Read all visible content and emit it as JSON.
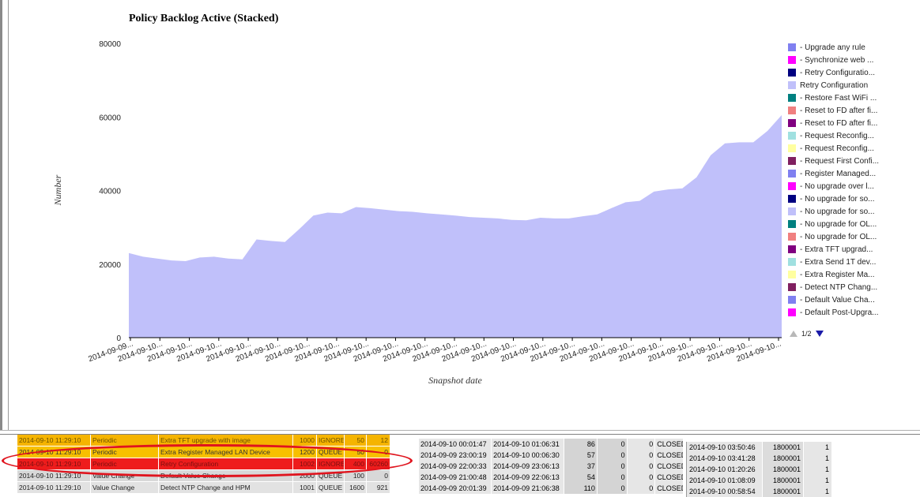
{
  "chart_data": {
    "type": "area",
    "title": "Policy Backlog Active (Stacked)",
    "ylabel": "Number",
    "xlabel": "Snapshot date",
    "ylim": [
      0,
      80000
    ],
    "yticks": [
      "0",
      "20000",
      "40000",
      "60000",
      "80000"
    ],
    "xtick_labels": [
      "2014-09-09...",
      "2014-09-10...",
      "2014-09-10...",
      "2014-09-10...",
      "2014-09-10...",
      "2014-09-10...",
      "2014-09-10...",
      "2014-09-10...",
      "2014-09-10...",
      "2014-09-10...",
      "2014-09-10...",
      "2014-09-10...",
      "2014-09-10...",
      "2014-09-10...",
      "2014-09-10...",
      "2014-09-10...",
      "2014-09-10...",
      "2014-09-10...",
      "2014-09-10...",
      "2014-09-10...",
      "2014-09-10...",
      "2014-09-10...",
      "2014-09-10..."
    ],
    "series": [
      {
        "name": "Retry Configuration",
        "color": "#c0c0fa",
        "values": [
          23000,
          22000,
          21500,
          21000,
          20800,
          21800,
          22000,
          21500,
          21300,
          26700,
          26300,
          26000,
          29500,
          33200,
          34000,
          33800,
          35500,
          35200,
          34800,
          34400,
          34200,
          33800,
          33500,
          33200,
          32800,
          32600,
          32400,
          32000,
          31900,
          32600,
          32400,
          32400,
          33000,
          33500,
          35200,
          36800,
          37200,
          39700,
          40300,
          40600,
          43600,
          49600,
          52800,
          53100,
          53100,
          56200,
          60500
        ]
      }
    ],
    "legend": [
      {
        "label": "- Upgrade any rule",
        "color": "#8080f0"
      },
      {
        "label": "- Synchronize web ...",
        "color": "#ff00ff"
      },
      {
        "label": "- Retry Configuratio...",
        "color": "#000080"
      },
      {
        "label": "Retry Configuration",
        "color": "#c0c0fa"
      },
      {
        "label": "- Restore Fast WiFi ...",
        "color": "#008080"
      },
      {
        "label": "- Reset to FD after fi...",
        "color": "#f08080"
      },
      {
        "label": "- Reset to FD after fi...",
        "color": "#800080"
      },
      {
        "label": "- Request Reconfig...",
        "color": "#a0e0e0"
      },
      {
        "label": "- Request Reconfig...",
        "color": "#ffffa0"
      },
      {
        "label": "- Request First Confi...",
        "color": "#802060"
      },
      {
        "label": "- Register Managed...",
        "color": "#8080f0"
      },
      {
        "label": "- No upgrade over l...",
        "color": "#ff00ff"
      },
      {
        "label": "- No upgrade for so...",
        "color": "#000080"
      },
      {
        "label": "- No upgrade for so...",
        "color": "#c0c0fa"
      },
      {
        "label": "- No upgrade for OL...",
        "color": "#008080"
      },
      {
        "label": "- No upgrade for OL...",
        "color": "#f08080"
      },
      {
        "label": "- Extra TFT upgrad...",
        "color": "#800080"
      },
      {
        "label": "- Extra Send 1T dev...",
        "color": "#a0e0e0"
      },
      {
        "label": "- Extra Register Ma...",
        "color": "#ffffa0"
      },
      {
        "label": "- Detect NTP Chang...",
        "color": "#802060"
      },
      {
        "label": "- Default Value Cha...",
        "color": "#8080f0"
      },
      {
        "label": "- Default Post-Upgra...",
        "color": "#ff00ff"
      }
    ],
    "legend_placement": "right",
    "legend_page": "1/2",
    "grid": false
  },
  "left_table": {
    "rows": [
      {
        "style": "cut",
        "ts": "2014-09-10 11:29:10",
        "type": "Periodic",
        "name": "Extra TFT upgrade with image",
        "n1": "1000",
        "status": "IGNORE",
        "n2": "50",
        "n3": "12"
      },
      {
        "style": "yellow",
        "ts": "2014-09-10 11:29:10",
        "type": "Periodic",
        "name": "Extra Register Managed LAN Device",
        "n1": "1200",
        "status": "QUEUE",
        "n2": "50",
        "n3": "0"
      },
      {
        "style": "red",
        "ts": "2014-09-10 11:29:10",
        "type": "Periodic",
        "name": "Retry Configuration",
        "n1": "1002",
        "status": "IGNORE",
        "n2": "400",
        "n3": "60260"
      },
      {
        "style": "grey",
        "ts": "2014-09-10 11:29:10",
        "type": "Value Change",
        "name": "Default Value Change",
        "n1": "2000",
        "status": "QUEUE",
        "n2": "100",
        "n3": "0"
      },
      {
        "style": "grey2",
        "ts": "2014-09-10 11:29:10",
        "type": "Value Change",
        "name": "Detect NTP Change and HPM",
        "n1": "1001",
        "status": "QUEUE",
        "n2": "1600",
        "n3": "921"
      }
    ]
  },
  "mid_table": {
    "rows": [
      {
        "a": "2014-09-10 00:01:47",
        "b": "2014-09-10 01:06:31",
        "c": "86",
        "d": "0",
        "e": "0",
        "f": "CLOSED"
      },
      {
        "a": "2014-09-09 23:00:19",
        "b": "2014-09-10 00:06:30",
        "c": "57",
        "d": "0",
        "e": "0",
        "f": "CLOSED"
      },
      {
        "a": "2014-09-09 22:00:33",
        "b": "2014-09-09 23:06:13",
        "c": "37",
        "d": "0",
        "e": "0",
        "f": "CLOSED"
      },
      {
        "a": "2014-09-09 21:00:48",
        "b": "2014-09-09 22:06:13",
        "c": "54",
        "d": "0",
        "e": "0",
        "f": "CLOSED"
      },
      {
        "a": "2014-09-09 20:01:39",
        "b": "2014-09-09 21:06:38",
        "c": "110",
        "d": "0",
        "e": "0",
        "f": "CLOSED"
      }
    ]
  },
  "right_table": {
    "rows": [
      {
        "a": "2014-09-10 03:50:46",
        "b": "1800001",
        "c": "1"
      },
      {
        "a": "2014-09-10 03:41:28",
        "b": "1800001",
        "c": "1"
      },
      {
        "a": "2014-09-10 01:20:26",
        "b": "1800001",
        "c": "1"
      },
      {
        "a": "2014-09-10 01:08:09",
        "b": "1800001",
        "c": "1"
      },
      {
        "a": "2014-09-10 00:58:54",
        "b": "1800001",
        "c": "1"
      }
    ]
  }
}
